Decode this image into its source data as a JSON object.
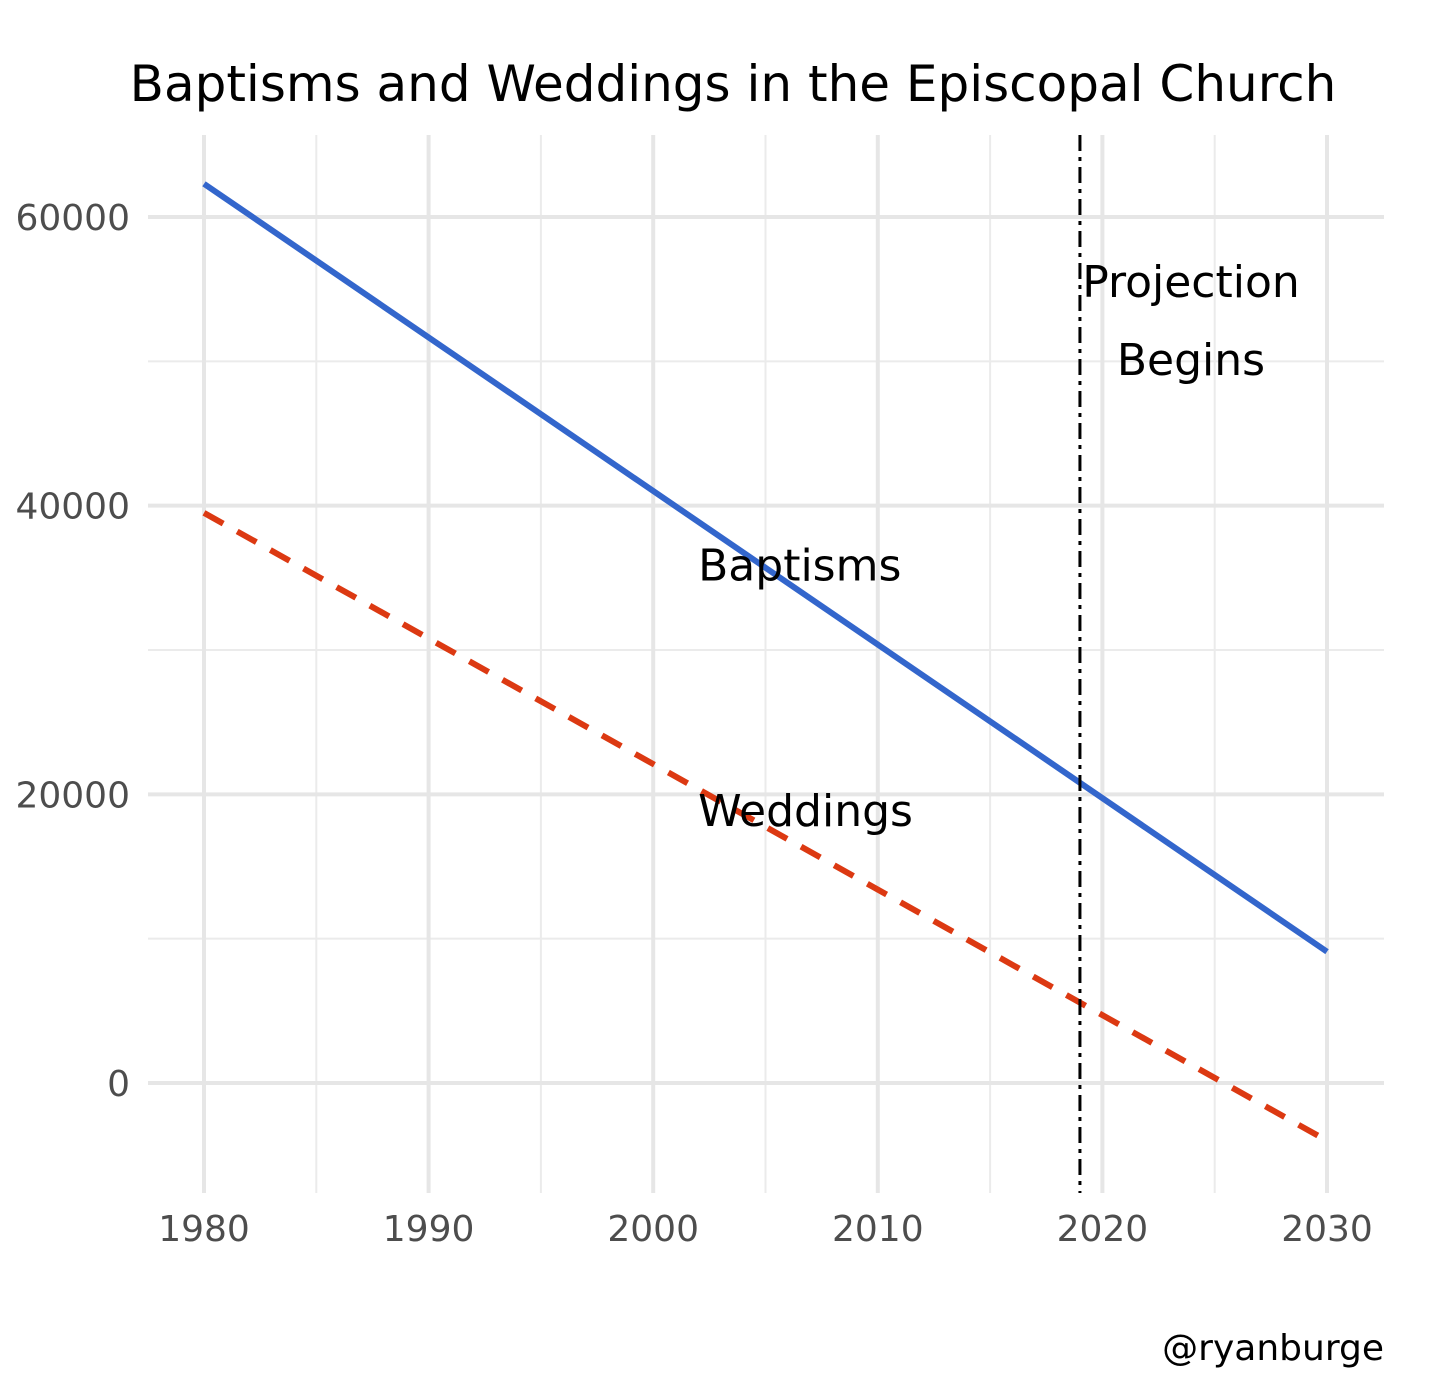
{
  "chart_data": {
    "type": "line",
    "title": "Baptisms and Weddings in the Episcopal Church",
    "xlabel": "",
    "ylabel": "",
    "x_ticks": [
      1980,
      1990,
      2000,
      2010,
      2020,
      2030
    ],
    "y_ticks": [
      0,
      20000,
      40000,
      60000
    ],
    "xlim": [
      1979,
      2032
    ],
    "ylim": [
      -7500,
      65500
    ],
    "grid": true,
    "legend": "none",
    "series": [
      {
        "name": "Baptisms",
        "color": "#3366cc",
        "line_style": "solid",
        "x": [
          1980,
          2030
        ],
        "y": [
          62300,
          9100
        ]
      },
      {
        "name": "Weddings",
        "color": "#dc3912",
        "line_style": "dashed",
        "x": [
          1980,
          2030
        ],
        "y": [
          39500,
          -4000
        ]
      }
    ],
    "annotations": [
      {
        "text": "Baptisms",
        "x": 2002,
        "y": 34800
      },
      {
        "text": "Weddings",
        "x": 2002,
        "y": 17800
      }
    ],
    "vline": {
      "x": 2019,
      "label_lines": [
        "Projection",
        "Begins"
      ],
      "style": "dotdash",
      "color": "#000000"
    },
    "credit": "@ryanburge"
  }
}
